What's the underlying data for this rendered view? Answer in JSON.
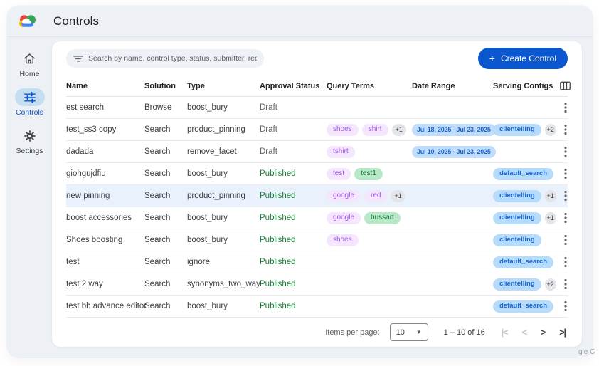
{
  "header": {
    "title": "Controls"
  },
  "watermark": "gle C",
  "sidebar": {
    "items": [
      {
        "id": "home",
        "label": "Home",
        "icon": "home-icon",
        "active": false
      },
      {
        "id": "controls",
        "label": "Controls",
        "icon": "tune-icon",
        "active": true
      },
      {
        "id": "settings",
        "label": "Settings",
        "icon": "gear-icon",
        "active": false
      }
    ]
  },
  "toolbar": {
    "search_placeholder": "Search by name, control type, status, submitter, requested on",
    "create_plus": "+",
    "create_button": "Create Control"
  },
  "table": {
    "columns": [
      "Name",
      "Solution",
      "Type",
      "Approval Status",
      "Query Terms",
      "Date Range",
      "Serving Configs"
    ],
    "rows": [
      {
        "name": "est search",
        "solution": "Browse",
        "type": "boost_bury",
        "status": "Draft",
        "query_terms": [],
        "date_range": "",
        "serving_configs": [],
        "highlight": false
      },
      {
        "name": "test_ss3 copy",
        "solution": "Search",
        "type": "product_pinning",
        "status": "Draft",
        "query_terms": [
          {
            "text": "shoes",
            "style": "purple"
          },
          {
            "text": "shirt",
            "style": "purple"
          },
          {
            "text": "+1",
            "style": "count"
          }
        ],
        "date_range": "Jul 18, 2025 - Jul 23, 2025",
        "serving_configs": [
          {
            "text": "clientelling",
            "style": "blue"
          },
          {
            "text": "+2",
            "style": "count"
          }
        ],
        "highlight": false
      },
      {
        "name": "dadada",
        "solution": "Search",
        "type": "remove_facet",
        "status": "Draft",
        "query_terms": [
          {
            "text": "tshirt",
            "style": "purple"
          }
        ],
        "date_range": "Jul 10, 2025 - Jul 23, 2025",
        "serving_configs": [],
        "highlight": false
      },
      {
        "name": "giohgujdfiu",
        "solution": "Search",
        "type": "boost_bury",
        "status": "Published",
        "query_terms": [
          {
            "text": "test",
            "style": "purple"
          },
          {
            "text": "test1",
            "style": "green"
          }
        ],
        "date_range": "",
        "serving_configs": [
          {
            "text": "default_search",
            "style": "blue"
          }
        ],
        "highlight": false
      },
      {
        "name": "new pinning",
        "solution": "Search",
        "type": "product_pinning",
        "status": "Published",
        "query_terms": [
          {
            "text": "google",
            "style": "purple"
          },
          {
            "text": "red",
            "style": "purple"
          },
          {
            "text": "+1",
            "style": "count"
          }
        ],
        "date_range": "",
        "serving_configs": [
          {
            "text": "clientelling",
            "style": "blue"
          },
          {
            "text": "+1",
            "style": "count"
          }
        ],
        "highlight": true
      },
      {
        "name": "boost accessories",
        "solution": "Search",
        "type": "boost_bury",
        "status": "Published",
        "query_terms": [
          {
            "text": "google",
            "style": "purple"
          },
          {
            "text": "bussart",
            "style": "green"
          }
        ],
        "date_range": "",
        "serving_configs": [
          {
            "text": "clientelling",
            "style": "blue"
          },
          {
            "text": "+1",
            "style": "count"
          }
        ],
        "highlight": false
      },
      {
        "name": "Shoes boosting",
        "solution": "Search",
        "type": "boost_bury",
        "status": "Published",
        "query_terms": [
          {
            "text": "shoes",
            "style": "purple"
          }
        ],
        "date_range": "",
        "serving_configs": [
          {
            "text": "clientelling",
            "style": "blue"
          }
        ],
        "highlight": false
      },
      {
        "name": "test",
        "solution": "Search",
        "type": "ignore",
        "status": "Published",
        "query_terms": [],
        "date_range": "",
        "serving_configs": [
          {
            "text": "default_search",
            "style": "blue"
          }
        ],
        "highlight": false
      },
      {
        "name": "test 2 way",
        "solution": "Search",
        "type": "synonyms_two_way",
        "status": "Published",
        "query_terms": [],
        "date_range": "",
        "serving_configs": [
          {
            "text": "clientelling",
            "style": "blue"
          },
          {
            "text": "+2",
            "style": "count"
          }
        ],
        "highlight": false
      },
      {
        "name": "test bb advance editor",
        "solution": "Search",
        "type": "boost_bury",
        "status": "Published",
        "query_terms": [],
        "date_range": "",
        "serving_configs": [
          {
            "text": "default_search",
            "style": "blue"
          }
        ],
        "highlight": false
      }
    ]
  },
  "pagination": {
    "label": "Items per page:",
    "page_size": "10",
    "range": "1 – 10 of 16",
    "first": "|<",
    "prev": "<",
    "next": ">",
    "last": ">|"
  },
  "colors": {
    "accent": "#0b57d0",
    "published": "#188038",
    "draft": "#5f6368",
    "chip_purple_bg": "#f3e6fd",
    "chip_purple_text": "#a254e8",
    "chip_green_bg": "#b9e8c8",
    "chip_green_text": "#137333",
    "chip_blue_bg": "#b7dbfb",
    "chip_blue_text": "#1765cf",
    "chip_count_bg": "#e3e5e9",
    "highlight_row": "#e9f1fc"
  }
}
